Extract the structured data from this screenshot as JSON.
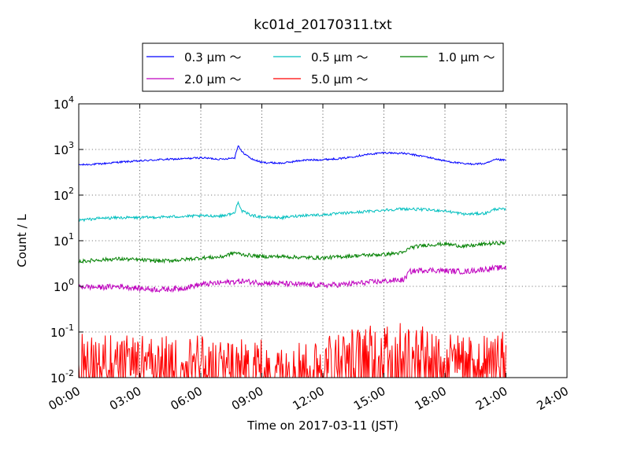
{
  "chart_data": {
    "type": "line",
    "title": "kc01d_20170311.txt",
    "xlabel": "Time on 2017-03-11 (JST)",
    "ylabel": "Count / L",
    "y_scale": "log",
    "ylim": [
      0.01,
      10000
    ],
    "xlim": [
      "00:00",
      "24:00"
    ],
    "x_ticks": [
      "00:00",
      "03:00",
      "06:00",
      "09:00",
      "12:00",
      "15:00",
      "18:00",
      "21:00",
      "24:00"
    ],
    "y_ticks": [
      {
        "base": "10",
        "exp": "-2",
        "value": 0.01
      },
      {
        "base": "10",
        "exp": "-1",
        "value": 0.1
      },
      {
        "base": "10",
        "exp": "0",
        "value": 1
      },
      {
        "base": "10",
        "exp": "1",
        "value": 10
      },
      {
        "base": "10",
        "exp": "2",
        "value": 100
      },
      {
        "base": "10",
        "exp": "3",
        "value": 1000
      },
      {
        "base": "10",
        "exp": "4",
        "value": 10000
      }
    ],
    "grid": true,
    "legend_position": "top",
    "series": [
      {
        "name": "0.3 μm ～",
        "color": "#0000ff",
        "x": [
          "00:00",
          "01:00",
          "02:00",
          "03:00",
          "04:00",
          "05:00",
          "06:00",
          "07:00",
          "07:40",
          "07:50",
          "08:00",
          "08:30",
          "09:00",
          "10:00",
          "11:00",
          "12:00",
          "13:00",
          "14:00",
          "15:00",
          "16:00",
          "17:00",
          "18:00",
          "19:00",
          "20:00",
          "20:30",
          "21:00"
        ],
        "values": [
          460,
          480,
          530,
          560,
          600,
          620,
          660,
          610,
          660,
          1250,
          900,
          620,
          520,
          500,
          580,
          600,
          640,
          760,
          850,
          820,
          700,
          560,
          480,
          490,
          600,
          580
        ]
      },
      {
        "name": "0.5 μm ～",
        "color": "#00bfbf",
        "x": [
          "00:00",
          "01:00",
          "02:00",
          "03:00",
          "04:00",
          "05:00",
          "06:00",
          "07:00",
          "07:40",
          "07:50",
          "08:00",
          "08:30",
          "09:00",
          "10:00",
          "11:00",
          "12:00",
          "13:00",
          "14:00",
          "15:00",
          "16:00",
          "17:00",
          "18:00",
          "19:00",
          "20:00",
          "20:30",
          "21:00"
        ],
        "values": [
          28,
          31,
          32,
          32,
          33,
          34,
          35,
          35,
          40,
          75,
          45,
          36,
          33,
          32,
          36,
          37,
          40,
          43,
          47,
          50,
          48,
          45,
          38,
          40,
          50,
          48
        ]
      },
      {
        "name": "1.0 μm ～",
        "color": "#008000",
        "x": [
          "00:00",
          "01:00",
          "02:00",
          "03:00",
          "04:00",
          "05:00",
          "06:00",
          "07:00",
          "07:40",
          "08:00",
          "09:00",
          "10:00",
          "11:00",
          "12:00",
          "13:00",
          "14:00",
          "15:00",
          "16:00",
          "16:15",
          "17:00",
          "18:00",
          "19:00",
          "20:00",
          "21:00"
        ],
        "values": [
          3.5,
          3.8,
          4.0,
          3.8,
          3.6,
          3.8,
          4.2,
          4.4,
          5.5,
          5.0,
          4.5,
          4.5,
          4.3,
          4.2,
          4.5,
          4.8,
          5.0,
          5.5,
          7.0,
          8.0,
          8.5,
          7.5,
          8.5,
          9.0
        ]
      },
      {
        "name": "2.0 μm ～",
        "color": "#bf00bf",
        "x": [
          "00:00",
          "01:00",
          "02:00",
          "03:00",
          "04:00",
          "05:00",
          "06:00",
          "07:00",
          "08:00",
          "09:00",
          "10:00",
          "11:00",
          "12:00",
          "13:00",
          "14:00",
          "15:00",
          "16:00",
          "16:15",
          "17:00",
          "18:00",
          "19:00",
          "20:00",
          "21:00"
        ],
        "values": [
          1.0,
          0.95,
          1.0,
          0.9,
          0.85,
          0.9,
          1.1,
          1.2,
          1.3,
          1.2,
          1.15,
          1.1,
          1.05,
          1.1,
          1.2,
          1.3,
          1.4,
          2.1,
          2.3,
          2.2,
          2.1,
          2.4,
          2.6
        ]
      },
      {
        "name": "5.0 μm ～",
        "color": "#ff0000",
        "x": [
          "00:00",
          "01:00",
          "02:00",
          "03:00",
          "04:00",
          "05:00",
          "06:00",
          "07:00",
          "08:00",
          "09:00",
          "10:00",
          "11:00",
          "12:00",
          "13:00",
          "14:00",
          "15:00",
          "16:00",
          "17:00",
          "18:00",
          "19:00",
          "20:00",
          "21:00"
        ],
        "values": [
          0.035,
          0.035,
          0.03,
          0.03,
          0.03,
          0.03,
          0.03,
          0.025,
          0.025,
          0.025,
          0.025,
          0.025,
          0.03,
          0.04,
          0.05,
          0.05,
          0.06,
          0.05,
          0.035,
          0.03,
          0.03,
          0.04
        ]
      }
    ]
  }
}
